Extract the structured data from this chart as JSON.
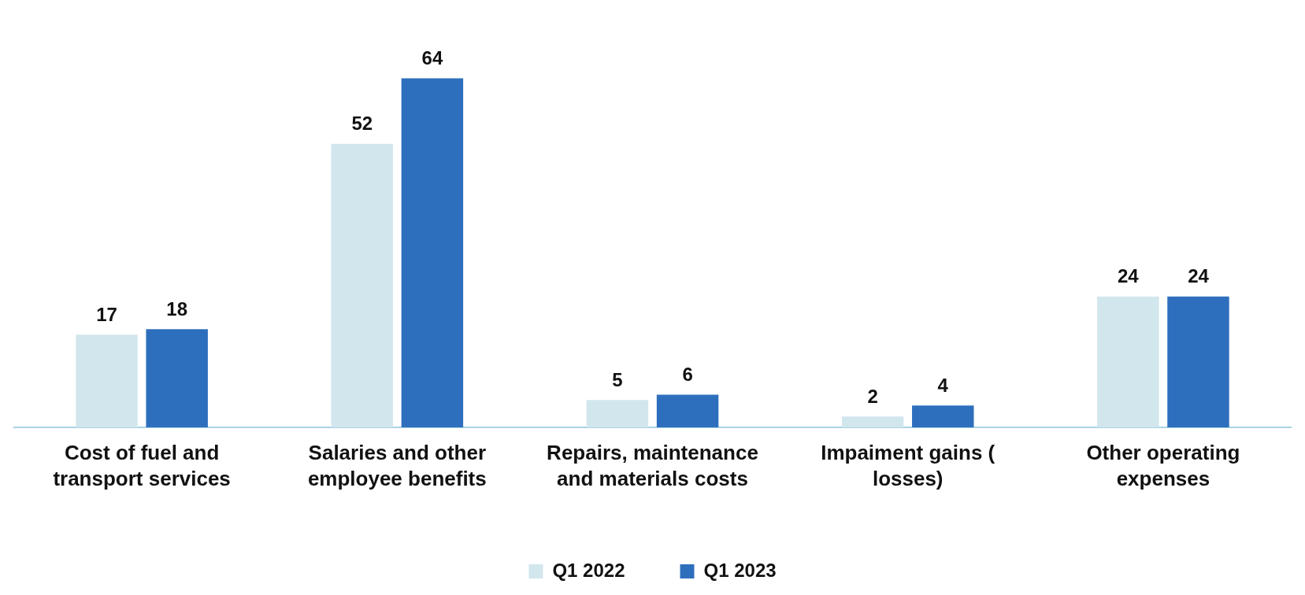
{
  "chart_data": {
    "type": "bar",
    "categories": [
      "Cost of fuel and transport services",
      "Salaries and other employee benefits",
      "Repairs, maintenance and materials costs",
      "Impaiment gains ( losses)",
      "Other operating expenses"
    ],
    "series": [
      {
        "name": "Q1 2022",
        "color": "#d2e6ed",
        "values": [
          17,
          52,
          5,
          2,
          24
        ]
      },
      {
        "name": "Q1 2023",
        "color": "#2e6fbd",
        "values": [
          18,
          64,
          6,
          4,
          24
        ]
      }
    ],
    "data_labels": true,
    "legend": "bottom",
    "grid": false
  }
}
